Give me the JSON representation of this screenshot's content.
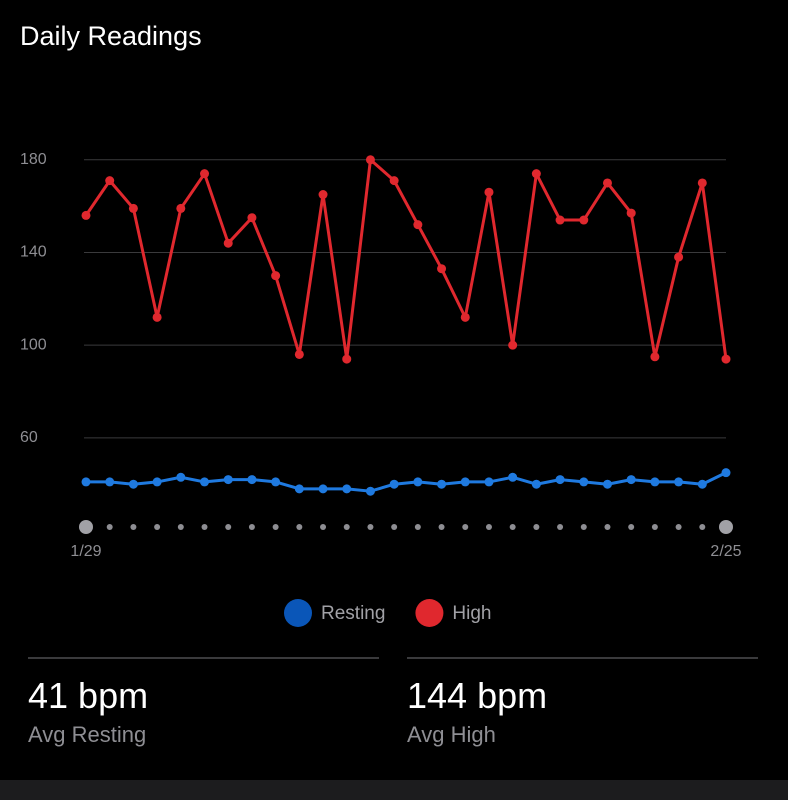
{
  "chart_data": {
    "type": "line",
    "title": "Daily Readings",
    "categories": [
      "1/29",
      null,
      null,
      null,
      null,
      null,
      null,
      null,
      null,
      null,
      null,
      null,
      null,
      null,
      null,
      null,
      null,
      null,
      null,
      null,
      null,
      null,
      null,
      null,
      null,
      null,
      null,
      "2/25"
    ],
    "series": [
      {
        "name": "Resting",
        "color": "#1f7ae0",
        "legend_color": "#0a56b8",
        "values": [
          41,
          41,
          40,
          41,
          43,
          41,
          42,
          42,
          41,
          38,
          38,
          38,
          37,
          40,
          41,
          40,
          41,
          41,
          43,
          40,
          42,
          41,
          40,
          42,
          41,
          41,
          40,
          45
        ]
      },
      {
        "name": "High",
        "color": "#e0282e",
        "legend_color": "#e0282e",
        "values": [
          156,
          171,
          159,
          112,
          159,
          174,
          144,
          155,
          130,
          96,
          165,
          94,
          180,
          171,
          152,
          133,
          112,
          166,
          100,
          174,
          154,
          154,
          170,
          157,
          95,
          138,
          170,
          94
        ]
      }
    ],
    "ylim": [
      25,
      195
    ],
    "yticks": [
      60,
      100,
      140,
      180
    ],
    "grid": true
  },
  "stats": [
    {
      "value": "41 bpm",
      "label": "Avg Resting"
    },
    {
      "value": "144 bpm",
      "label": "Avg High"
    }
  ]
}
